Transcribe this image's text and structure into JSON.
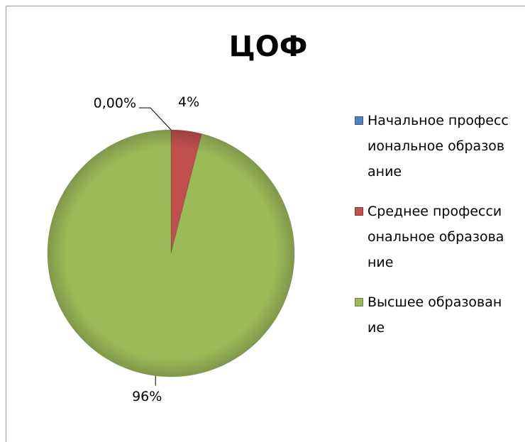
{
  "chart_data": {
    "type": "pie",
    "title": "ЦОФ",
    "categories": [
      "Начальное профессиональное образование",
      "Среднее профессиональное образование",
      "Высшее образование"
    ],
    "values": [
      0,
      4,
      96
    ],
    "value_labels": [
      "0,00%",
      "4%",
      "96%"
    ],
    "colors": [
      "#4f81bd",
      "#c0504d",
      "#9bbb59"
    ]
  }
}
